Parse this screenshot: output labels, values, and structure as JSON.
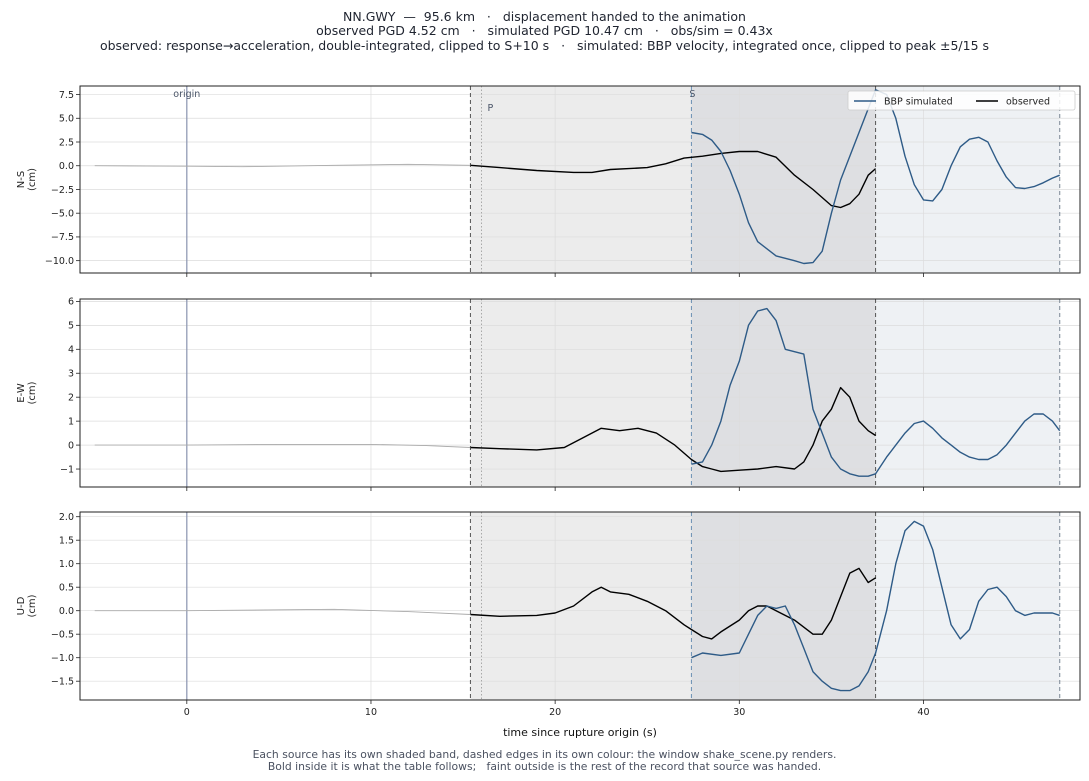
{
  "header": {
    "line1": "NN.GWY  —  95.6 km   ·   displacement handed to the animation",
    "line2": "observed PGD 4.52 cm   ·   simulated PGD 10.47 cm   ·   obs/sim = 0.43x",
    "line3": "observed: response→acceleration, double-integrated, clipped to S+10 s   ·   simulated: BBP velocity, integrated once, clipped to peak ±5/15 s"
  },
  "caption": {
    "line1": "Each source has its own shaded band, dashed edges in its own colour: the window shake_scene.py renders.",
    "line2": "Bold inside it is what the table follows;   faint outside is the rest of the record that source was handed."
  },
  "chart_data": {
    "type": "line",
    "xlabel": "time since rupture origin (s)",
    "xlim": [
      -5.8,
      48.5
    ],
    "xticks": [
      0,
      10,
      20,
      30,
      40
    ],
    "markers": [
      {
        "label": "origin",
        "t": 0
      },
      {
        "label": "P",
        "t": 16.0
      },
      {
        "label": "S",
        "t": 27.4
      }
    ],
    "windows": {
      "observed": {
        "start": 15.4,
        "end": 37.4
      },
      "simulated": {
        "start": 27.4,
        "end": 47.4
      }
    },
    "legend": {
      "position": "top-right",
      "entries": [
        "BBP simulated",
        "observed"
      ]
    },
    "colors": {
      "simulated": "#2e5b87",
      "observed": "#000000",
      "faint": "#aaaaaa",
      "origin": "#8a94b0"
    },
    "panels": [
      {
        "ylabel": [
          "N-S",
          "(cm)"
        ],
        "ylim": [
          -11.3,
          8.4
        ],
        "yticks": [
          -10.0,
          -7.5,
          -5.0,
          -2.5,
          0.0,
          2.5,
          5.0,
          7.5
        ],
        "series": [
          {
            "name": "observed",
            "x": [
              -5,
              0,
              3,
              8,
              12,
              15.4
            ],
            "y": [
              0,
              -0.05,
              -0.1,
              0.05,
              0.15,
              0.05
            ]
          },
          {
            "name": "observed",
            "x": [
              15.4,
              17,
              19,
              21,
              22,
              23,
              24,
              25,
              26,
              27,
              28,
              29,
              30,
              31,
              32,
              33,
              34,
              35,
              35.5,
              36,
              36.5,
              37,
              37.4
            ],
            "y": [
              0.05,
              -0.2,
              -0.5,
              -0.7,
              -0.7,
              -0.4,
              -0.3,
              -0.2,
              0.2,
              0.8,
              1.0,
              1.3,
              1.5,
              1.5,
              0.9,
              -1.0,
              -2.5,
              -4.2,
              -4.4,
              -4.0,
              -3.0,
              -1.0,
              -0.3
            ]
          },
          {
            "name": "BBP simulated",
            "x": [
              27.4,
              28,
              28.5,
              29,
              29.5,
              30,
              30.5,
              31,
              32,
              33,
              33.5,
              34,
              34.5,
              35,
              35.5,
              36,
              36.5,
              37,
              37.4,
              38,
              38.5,
              39,
              39.5,
              40,
              40.5,
              41,
              41.5,
              42,
              42.5,
              43,
              43.5,
              44,
              44.5,
              45,
              45.5,
              46,
              46.5,
              47,
              47.4
            ],
            "y": [
              3.5,
              3.3,
              2.7,
              1.5,
              -0.5,
              -3.0,
              -6.0,
              -8.0,
              -9.5,
              -10.0,
              -10.3,
              -10.2,
              -9.0,
              -5.0,
              -1.5,
              1.0,
              3.5,
              6.0,
              8.0,
              7.5,
              5.0,
              1.0,
              -2.0,
              -3.6,
              -3.7,
              -2.5,
              0.0,
              2.0,
              2.8,
              3.0,
              2.5,
              0.5,
              -1.2,
              -2.3,
              -2.4,
              -2.2,
              -1.8,
              -1.3,
              -1.0
            ]
          }
        ]
      },
      {
        "ylabel": [
          "E-W",
          "(cm)"
        ],
        "ylim": [
          -1.75,
          6.1
        ],
        "yticks": [
          -1,
          0,
          1,
          2,
          3,
          4,
          5,
          6
        ],
        "series": [
          {
            "name": "observed",
            "x": [
              -5,
              0,
              5,
              10,
              13,
              15.4
            ],
            "y": [
              0,
              0,
              0.03,
              0.03,
              -0.02,
              -0.1
            ]
          },
          {
            "name": "observed",
            "x": [
              15.4,
              17,
              19,
              20.5,
              21.5,
              22.5,
              23.5,
              24.5,
              25.5,
              26.5,
              27.4,
              28,
              28.5,
              29,
              30,
              31,
              32,
              33,
              33.5,
              34,
              34.5,
              35,
              35.5,
              36,
              36.5,
              37,
              37.4
            ],
            "y": [
              -0.1,
              -0.15,
              -0.2,
              -0.1,
              0.3,
              0.7,
              0.6,
              0.7,
              0.5,
              0.0,
              -0.6,
              -0.9,
              -1.0,
              -1.1,
              -1.05,
              -1.0,
              -0.9,
              -1.0,
              -0.7,
              0.0,
              1.0,
              1.5,
              2.4,
              2.0,
              1.0,
              0.6,
              0.4
            ]
          },
          {
            "name": "BBP simulated",
            "x": [
              27.4,
              28,
              28.5,
              29,
              29.5,
              30,
              30.5,
              31,
              31.5,
              32,
              32.5,
              33,
              33.5,
              34,
              34.5,
              35,
              35.5,
              36,
              36.5,
              37,
              37.4,
              38,
              38.5,
              39,
              39.5,
              40,
              40.5,
              41,
              41.5,
              42,
              42.5,
              43,
              43.5,
              44,
              44.5,
              45,
              45.5,
              46,
              46.5,
              47,
              47.4
            ],
            "y": [
              -0.8,
              -0.7,
              0.0,
              1.0,
              2.5,
              3.5,
              5.0,
              5.6,
              5.7,
              5.2,
              4.0,
              3.9,
              3.8,
              1.5,
              0.5,
              -0.5,
              -1.0,
              -1.2,
              -1.3,
              -1.3,
              -1.2,
              -0.5,
              0.0,
              0.5,
              0.9,
              1.0,
              0.7,
              0.3,
              0.0,
              -0.3,
              -0.5,
              -0.6,
              -0.6,
              -0.4,
              0.0,
              0.5,
              1.0,
              1.3,
              1.3,
              1.0,
              0.6
            ]
          }
        ]
      },
      {
        "ylabel": [
          "U-D",
          "(cm)"
        ],
        "ylim": [
          -1.9,
          2.1
        ],
        "yticks": [
          -1.5,
          -1.0,
          -0.5,
          0.0,
          0.5,
          1.0,
          1.5,
          2.0
        ],
        "series": [
          {
            "name": "observed",
            "x": [
              -5,
              0,
              5,
              8,
              12,
              15.4
            ],
            "y": [
              0,
              0,
              0.02,
              0.03,
              -0.02,
              -0.08
            ]
          },
          {
            "name": "observed",
            "x": [
              15.4,
              17,
              19,
              20,
              21,
              22,
              22.5,
              23,
              24,
              25,
              26,
              27,
              27.4,
              28,
              28.5,
              29,
              30,
              30.5,
              31,
              31.5,
              32,
              33,
              34,
              34.5,
              35,
              35.5,
              36,
              36.5,
              37,
              37.4
            ],
            "y": [
              -0.08,
              -0.12,
              -0.1,
              -0.05,
              0.1,
              0.4,
              0.5,
              0.4,
              0.35,
              0.2,
              0.0,
              -0.3,
              -0.4,
              -0.55,
              -0.6,
              -0.45,
              -0.2,
              0.0,
              0.1,
              0.1,
              0.0,
              -0.2,
              -0.5,
              -0.5,
              -0.2,
              0.3,
              0.8,
              0.9,
              0.6,
              0.7
            ]
          },
          {
            "name": "BBP simulated",
            "x": [
              27.4,
              28,
              29,
              30,
              30.5,
              31,
              31.5,
              32,
              32.5,
              33,
              33.5,
              34,
              34.5,
              35,
              35.5,
              36,
              36.5,
              37,
              37.4,
              38,
              38.5,
              39,
              39.5,
              40,
              40.5,
              41,
              41.5,
              42,
              42.5,
              43,
              43.5,
              44,
              44.5,
              45,
              45.5,
              46,
              46.5,
              47,
              47.4
            ],
            "y": [
              -1.0,
              -0.9,
              -0.95,
              -0.9,
              -0.5,
              -0.1,
              0.1,
              0.05,
              0.1,
              -0.3,
              -0.8,
              -1.3,
              -1.5,
              -1.65,
              -1.7,
              -1.7,
              -1.6,
              -1.3,
              -0.9,
              0.0,
              1.0,
              1.7,
              1.9,
              1.8,
              1.3,
              0.5,
              -0.3,
              -0.6,
              -0.4,
              0.2,
              0.45,
              0.5,
              0.3,
              0.0,
              -0.1,
              -0.05,
              -0.05,
              -0.05,
              -0.1
            ]
          }
        ]
      }
    ]
  }
}
